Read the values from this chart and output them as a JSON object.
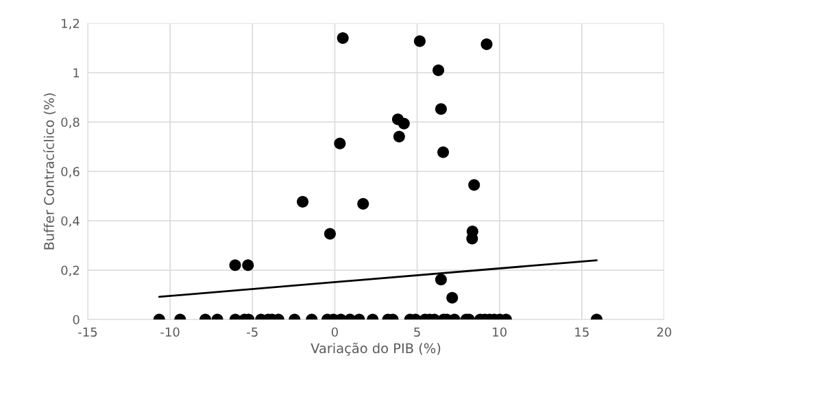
{
  "chart_data": {
    "type": "scatter",
    "xlabel": "Variação do PIB (%)",
    "ylabel": "Buffer Contracíclico (%)",
    "xlim": [
      -15,
      20
    ],
    "xticks": [
      -15,
      -10,
      -5,
      0,
      5,
      10,
      15,
      20
    ],
    "ylim": [
      0,
      1.2
    ],
    "yticks": [
      0,
      {
        "value": 0.2,
        "label": "0,2"
      },
      {
        "value": 0.4,
        "label": "0,4"
      },
      {
        "value": 0.6,
        "label": "0,6"
      },
      {
        "value": 0.8,
        "label": "0,8"
      },
      1,
      {
        "value": 1.2,
        "label": "1,2"
      }
    ],
    "grid": true,
    "legend": false,
    "marker": "circle",
    "series": [
      {
        "color": "#000000",
        "x": [
          0.49,
          5.16,
          9.22,
          6.29,
          6.45,
          3.83,
          4.2,
          3.91,
          0.31,
          6.58,
          8.46,
          -1.95,
          1.72,
          -0.29,
          8.36,
          8.34,
          -6.05,
          -5.27,
          6.45,
          7.13,
          -10.66,
          -9.39,
          -7.86,
          -7.13,
          -6.04,
          -5.48,
          -5.23,
          -4.48,
          -4.04,
          -3.81,
          -3.42,
          -2.44,
          -1.4,
          -0.45,
          -0.08,
          0.37,
          0.93,
          1.48,
          2.3,
          3.23,
          3.52,
          4.57,
          4.9,
          5.48,
          5.76,
          6.05,
          6.61,
          6.8,
          7.27,
          7.98,
          8.15,
          8.83,
          9.11,
          9.4,
          9.68,
          10.02,
          10.4,
          15.9
        ],
        "values": [
          1.14,
          1.128,
          1.115,
          1.01,
          0.853,
          0.811,
          0.794,
          0.741,
          0.713,
          0.678,
          0.545,
          0.477,
          0.469,
          0.347,
          0.357,
          0.328,
          0.22,
          0.22,
          0.162,
          0.088,
          0,
          0,
          0,
          0,
          0,
          0,
          0,
          0,
          0,
          0,
          0,
          0,
          0,
          0,
          0,
          0,
          0,
          0,
          0,
          0,
          0,
          0,
          0,
          0,
          0,
          0,
          0,
          0,
          0,
          0,
          0,
          0,
          0,
          0,
          0,
          0,
          0,
          0
        ]
      },
      {
        "type": "line",
        "color": "#000000",
        "marker": "none",
        "line_style": "solid",
        "x": [
          -10.66,
          15.9
        ],
        "values": [
          0.092,
          0.24
        ]
      }
    ]
  }
}
